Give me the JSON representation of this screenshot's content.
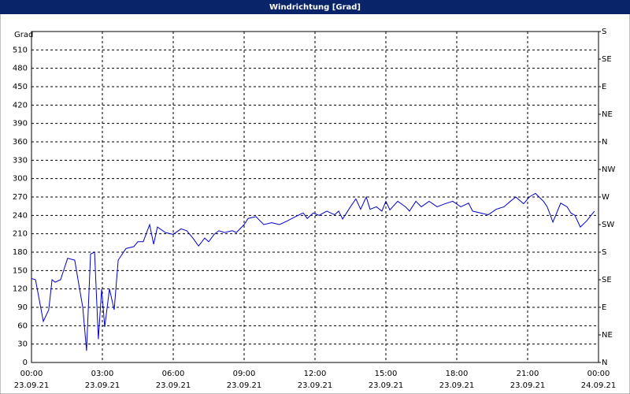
{
  "chart_data": {
    "type": "line",
    "title": "Windrichtung [Grad]",
    "y_label": "Grad",
    "x": [
      0,
      0.17,
      0.5,
      0.73,
      0.87,
      1,
      1.23,
      1.53,
      1.83,
      2,
      2.17,
      2.33,
      2.5,
      2.67,
      2.83,
      2.97,
      3.1,
      3.3,
      3.5,
      3.67,
      4,
      4.33,
      4.5,
      4.73,
      5,
      5.17,
      5.33,
      5.67,
      6,
      6.33,
      6.57,
      6.83,
      7.07,
      7.33,
      7.5,
      7.73,
      7.93,
      8.17,
      8.5,
      8.67,
      9,
      9.17,
      9.5,
      9.83,
      10.17,
      10.5,
      10.83,
      11.17,
      11.5,
      11.67,
      11.93,
      12.17,
      12.5,
      12.83,
      13,
      13.17,
      13.5,
      13.73,
      13.93,
      14.17,
      14.33,
      14.6,
      14.83,
      15,
      15.17,
      15.5,
      15.83,
      16,
      16.27,
      16.5,
      16.83,
      17.17,
      17.5,
      17.83,
      18.17,
      18.5,
      18.67,
      19,
      19.33,
      19.67,
      20,
      20.27,
      20.5,
      20.83,
      21.07,
      21.33,
      21.67,
      21.83,
      22.07,
      22.4,
      22.67,
      22.83,
      23,
      23.23,
      23.5,
      23.83
    ],
    "series": [
      {
        "color": "#0000cc",
        "values": [
          137,
          135,
          67,
          86,
          135,
          131,
          135,
          170,
          167,
          128,
          90,
          19,
          177,
          180,
          38,
          120,
          58,
          120,
          86,
          167,
          186,
          189,
          197,
          197,
          225,
          193,
          221,
          212,
          209,
          218,
          215,
          203,
          190,
          203,
          197,
          209,
          215,
          212,
          215,
          212,
          225,
          235,
          238,
          225,
          228,
          225,
          231,
          238,
          244,
          235,
          244,
          240,
          247,
          241,
          247,
          234,
          254,
          267,
          250,
          270,
          250,
          254,
          247,
          263,
          249,
          263,
          254,
          247,
          263,
          254,
          263,
          254,
          259,
          263,
          254,
          260,
          247,
          244,
          241,
          250,
          254,
          263,
          270,
          259,
          270,
          276,
          263,
          254,
          229,
          260,
          254,
          244,
          240,
          221,
          231,
          247
        ]
      }
    ],
    "xlim": [
      0,
      24
    ],
    "xticks": [
      {
        "value": 0,
        "label": "00:00",
        "date": "23.09.21"
      },
      {
        "value": 3,
        "label": "03:00",
        "date": "23.09.21"
      },
      {
        "value": 6,
        "label": "06:00",
        "date": "23.09.21"
      },
      {
        "value": 9,
        "label": "09:00",
        "date": "23.09.21"
      },
      {
        "value": 12,
        "label": "12:00",
        "date": "23.09.21"
      },
      {
        "value": 15,
        "label": "15:00",
        "date": "23.09.21"
      },
      {
        "value": 18,
        "label": "18:00",
        "date": "23.09.21"
      },
      {
        "value": 21,
        "label": "21:00",
        "date": "23.09.21"
      },
      {
        "value": 24,
        "label": "00:00",
        "date": "24.09.21"
      }
    ],
    "ylim": [
      0,
      540
    ],
    "yticks": [
      0,
      30,
      60,
      90,
      120,
      150,
      180,
      210,
      240,
      270,
      300,
      330,
      360,
      390,
      420,
      450,
      480,
      510
    ],
    "y2lim": [
      0,
      540
    ],
    "y2ticks": [
      {
        "value": 0,
        "label": "N"
      },
      {
        "value": 45,
        "label": "NE"
      },
      {
        "value": 90,
        "label": "E"
      },
      {
        "value": 135,
        "label": "SE"
      },
      {
        "value": 180,
        "label": "S"
      },
      {
        "value": 225,
        "label": "SW"
      },
      {
        "value": 270,
        "label": "W"
      },
      {
        "value": 315,
        "label": "NW"
      },
      {
        "value": 360,
        "label": "N"
      },
      {
        "value": 405,
        "label": "NE"
      },
      {
        "value": 450,
        "label": "E"
      },
      {
        "value": 495,
        "label": "SE"
      },
      {
        "value": 540,
        "label": "S"
      }
    ],
    "grid": true
  }
}
